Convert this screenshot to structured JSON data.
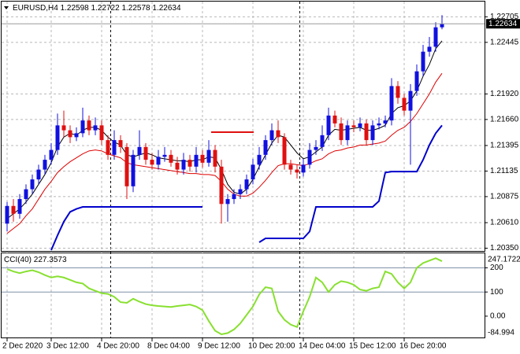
{
  "chart_data": [
    {
      "type": "candlestick",
      "title": "EURUSD,H4",
      "categories": [
        "2 Dec 2020",
        null,
        null,
        null,
        null,
        null,
        null,
        "3 Dec 12:00",
        null,
        null,
        null,
        null,
        null,
        null,
        null,
        "4 Dec 20:00",
        null,
        null,
        null,
        null,
        null,
        null,
        null,
        "8 Dec 04:00",
        null,
        null,
        null,
        null,
        null,
        null,
        null,
        "9 Dec 12:00",
        null,
        null,
        null,
        null,
        null,
        null,
        null,
        "10 Dec 20:00",
        null,
        null,
        null,
        null,
        null,
        null,
        null,
        "14 Dec 04:00",
        null,
        null,
        null,
        null,
        null,
        null,
        null,
        "15 Dec 12:00",
        null,
        null,
        null,
        null,
        null,
        null,
        null,
        "16 Dec 20:00",
        null,
        null,
        null,
        null,
        null,
        null
      ],
      "open": [
        1.206,
        1.2078,
        1.207,
        1.2085,
        1.2095,
        1.2105,
        1.2115,
        1.2125,
        1.2135,
        1.216,
        1.2155,
        1.2148,
        1.2152,
        1.2165,
        1.2155,
        1.216,
        1.2145,
        1.213,
        1.2145,
        1.2138,
        1.2098,
        1.213,
        1.2138,
        1.2125,
        1.212,
        1.2128,
        1.213,
        1.2122,
        1.2115,
        1.2125,
        1.2118,
        1.213,
        1.2122,
        1.2135,
        1.2118,
        1.208,
        1.2085,
        1.209,
        1.2095,
        1.2105,
        1.212,
        1.213,
        1.2145,
        1.2155,
        1.2148,
        1.212,
        1.2115,
        1.2112,
        1.212,
        1.2135,
        1.2138,
        1.215,
        1.217,
        1.2162,
        1.2145,
        1.216,
        1.2158,
        1.2162,
        1.2145,
        1.216,
        1.2162,
        1.2165,
        1.22,
        1.2188,
        1.2175,
        1.2195,
        1.2215,
        1.2235,
        1.224,
        1.22598
      ],
      "high": [
        1.2082,
        1.2085,
        1.209,
        1.21,
        1.211,
        1.212,
        1.213,
        1.2142,
        1.2172,
        1.2175,
        1.216,
        1.2158,
        1.2178,
        1.217,
        1.2168,
        1.2165,
        1.215,
        1.2155,
        1.215,
        1.2142,
        1.2135,
        1.2155,
        1.2142,
        1.2132,
        1.2135,
        1.2138,
        1.2135,
        1.2128,
        1.2132,
        1.213,
        1.2138,
        1.2135,
        1.2145,
        1.214,
        1.2125,
        1.209,
        1.2095,
        1.21,
        1.211,
        1.2126,
        1.2138,
        1.215,
        1.2162,
        1.2165,
        1.2152,
        1.2125,
        1.212,
        1.2126,
        1.2142,
        1.2145,
        1.216,
        1.2178,
        1.2175,
        1.2168,
        1.2165,
        1.2165,
        1.2168,
        1.2166,
        1.2165,
        1.2168,
        1.217,
        1.2208,
        1.2205,
        1.2192,
        1.2202,
        1.2222,
        1.2242,
        1.225,
        1.2265,
        1.22722
      ],
      "low": [
        1.2052,
        1.2062,
        1.2065,
        1.208,
        1.209,
        1.21,
        1.211,
        1.212,
        1.213,
        1.2148,
        1.2142,
        1.2144,
        1.2148,
        1.215,
        1.215,
        1.214,
        1.2125,
        1.2125,
        1.2132,
        1.2085,
        1.2092,
        1.2125,
        1.212,
        1.2115,
        1.2115,
        1.2123,
        1.2118,
        1.211,
        1.211,
        1.2113,
        1.2112,
        1.2117,
        1.2118,
        1.2112,
        1.206,
        1.2062,
        1.208,
        1.2085,
        1.209,
        1.21,
        1.2115,
        1.2125,
        1.214,
        1.2142,
        1.2115,
        1.211,
        1.2106,
        1.2108,
        1.2116,
        1.213,
        1.2134,
        1.2145,
        1.2158,
        1.214,
        1.214,
        1.2153,
        1.2154,
        1.214,
        1.214,
        1.2156,
        1.2158,
        1.216,
        1.2182,
        1.217,
        1.212,
        1.219,
        1.221,
        1.223,
        1.2235,
        1.22578
      ],
      "close": [
        1.2078,
        1.207,
        1.2085,
        1.2095,
        1.2105,
        1.2115,
        1.2125,
        1.2135,
        1.216,
        1.2155,
        1.2148,
        1.2152,
        1.2165,
        1.2155,
        1.216,
        1.2145,
        1.213,
        1.2145,
        1.2138,
        1.2098,
        1.213,
        1.2138,
        1.2125,
        1.212,
        1.2128,
        1.213,
        1.2122,
        1.2115,
        1.2125,
        1.2118,
        1.213,
        1.2122,
        1.2135,
        1.2118,
        1.208,
        1.2085,
        1.209,
        1.2095,
        1.2105,
        1.212,
        1.213,
        1.2145,
        1.2155,
        1.2148,
        1.212,
        1.2115,
        1.2112,
        1.212,
        1.2135,
        1.2138,
        1.215,
        1.217,
        1.2162,
        1.2145,
        1.216,
        1.2158,
        1.2162,
        1.2145,
        1.216,
        1.2162,
        1.2165,
        1.22,
        1.2188,
        1.2175,
        1.2195,
        1.2215,
        1.2235,
        1.224,
        1.22598,
        1.22634
      ],
      "up_color": "#1010e0",
      "down_color": "#e01010",
      "lines": [
        {
          "color": "#000000",
          "width": 1,
          "values": [
            1.2065,
            1.207,
            1.2075,
            1.2082,
            1.209,
            1.21,
            1.211,
            1.2122,
            1.2138,
            1.2148,
            1.2152,
            1.215,
            1.2155,
            1.2158,
            1.2158,
            1.2155,
            1.2148,
            1.2143,
            1.214,
            1.213,
            1.2128,
            1.213,
            1.2132,
            1.213,
            1.2127,
            1.2126,
            1.2125,
            1.2124,
            1.2124,
            1.2123,
            1.2125,
            1.2125,
            1.2128,
            1.2127,
            1.2115,
            1.21,
            1.2092,
            1.209,
            1.2095,
            1.2105,
            1.2118,
            1.213,
            1.2142,
            1.215,
            1.2148,
            1.214,
            1.2132,
            1.2126,
            1.2128,
            1.2133,
            1.2138,
            1.215,
            1.2156,
            1.2155,
            1.2156,
            1.2157,
            1.2158,
            1.2155,
            1.2155,
            1.2157,
            1.216,
            1.2172,
            1.2178,
            1.218,
            1.2185,
            1.2195,
            1.221,
            1.2222,
            1.2238,
            1.2246
          ]
        },
        {
          "color": "#dd0000",
          "width": 1,
          "values": [
            1.205,
            1.2055,
            1.206,
            1.2068,
            1.2075,
            1.2085,
            1.2095,
            1.2103,
            1.2112,
            1.2118,
            1.2123,
            1.2127,
            1.2131,
            1.2134,
            1.2135,
            1.2134,
            1.2131,
            1.2129,
            1.2127,
            1.2122,
            1.212,
            1.2119,
            1.2118,
            1.2117,
            1.2116,
            1.2115,
            1.2114,
            1.2113,
            1.2112,
            1.2111,
            1.2111,
            1.211,
            1.211,
            1.2109,
            1.2103,
            1.2095,
            1.209,
            1.2088,
            1.2088,
            1.2091,
            1.2097,
            1.2104,
            1.2112,
            1.2119,
            1.2121,
            1.2121,
            1.212,
            1.2119,
            1.2121,
            1.2124,
            1.2126,
            1.2131,
            1.2134,
            1.2135,
            1.2137,
            1.2138,
            1.214,
            1.214,
            1.2141,
            1.2142,
            1.2144,
            1.215,
            1.2155,
            1.2158,
            1.2164,
            1.2172,
            1.2182,
            1.2192,
            1.2204,
            1.2213
          ]
        },
        {
          "color": "#0000cc",
          "width": 2,
          "values": [
            null,
            null,
            null,
            null,
            null,
            null,
            null,
            1.2033,
            1.2048,
            1.2062,
            1.2072,
            1.2075,
            1.2077,
            1.2077,
            1.2077,
            1.2077,
            1.2077,
            1.2077,
            1.2077,
            1.2077,
            1.2077,
            1.2077,
            1.2077,
            1.2077,
            1.2077,
            1.2077,
            1.2077,
            1.2077,
            1.2077,
            1.2077,
            1.2077,
            1.2077,
            null,
            null,
            null,
            null,
            null,
            null,
            null,
            null,
            1.2041,
            1.2045,
            1.2045,
            1.2045,
            1.2045,
            1.2045,
            1.2045,
            1.2045,
            1.2052,
            1.2077,
            1.2077,
            1.2077,
            1.2077,
            1.2077,
            1.2077,
            1.2077,
            1.2077,
            1.2077,
            1.2077,
            1.2083,
            1.2112,
            1.2113,
            1.2113,
            1.2113,
            1.2113,
            1.2113,
            1.2125,
            1.214,
            1.2152,
            1.216
          ]
        }
      ],
      "ylim": [
        1.2033,
        1.2286
      ],
      "yticks": [
        1.22705,
        1.22445,
        {
          "value": 1.2192,
          "label": "1.21920"
        },
        {
          "value": 1.2166,
          "label": "1.21660"
        },
        1.21395,
        1.21135,
        1.20875,
        {
          "value": 1.2061,
          "label": "1.20610"
        },
        {
          "value": 1.2035,
          "label": "1.20350"
        }
      ],
      "grid": true
    },
    {
      "type": "line",
      "title": "CCI(40)",
      "series": [
        {
          "color": "#88e030",
          "values": [
            195,
            185,
            178,
            185,
            190,
            182,
            170,
            160,
            165,
            160,
            150,
            140,
            135,
            115,
            105,
            95,
            92,
            80,
            58,
            55,
            72,
            60,
            50,
            45,
            42,
            40,
            38,
            42,
            45,
            48,
            40,
            25,
            -20,
            -60,
            -75,
            -70,
            -55,
            -30,
            5,
            40,
            90,
            120,
            115,
            20,
            -15,
            -35,
            -45,
            20,
            80,
            160,
            140,
            100,
            130,
            145,
            140,
            130,
            110,
            105,
            115,
            120,
            185,
            175,
            140,
            115,
            140,
            200,
            220,
            230,
            240,
            227.3573
          ]
        }
      ],
      "ylim": [
        -84.994,
        247.1722
      ],
      "yticks": [
        200,
        100,
        {
          "value": 0,
          "label": "0.00"
        }
      ],
      "level_lines": [
        200,
        100
      ]
    }
  ]
}
